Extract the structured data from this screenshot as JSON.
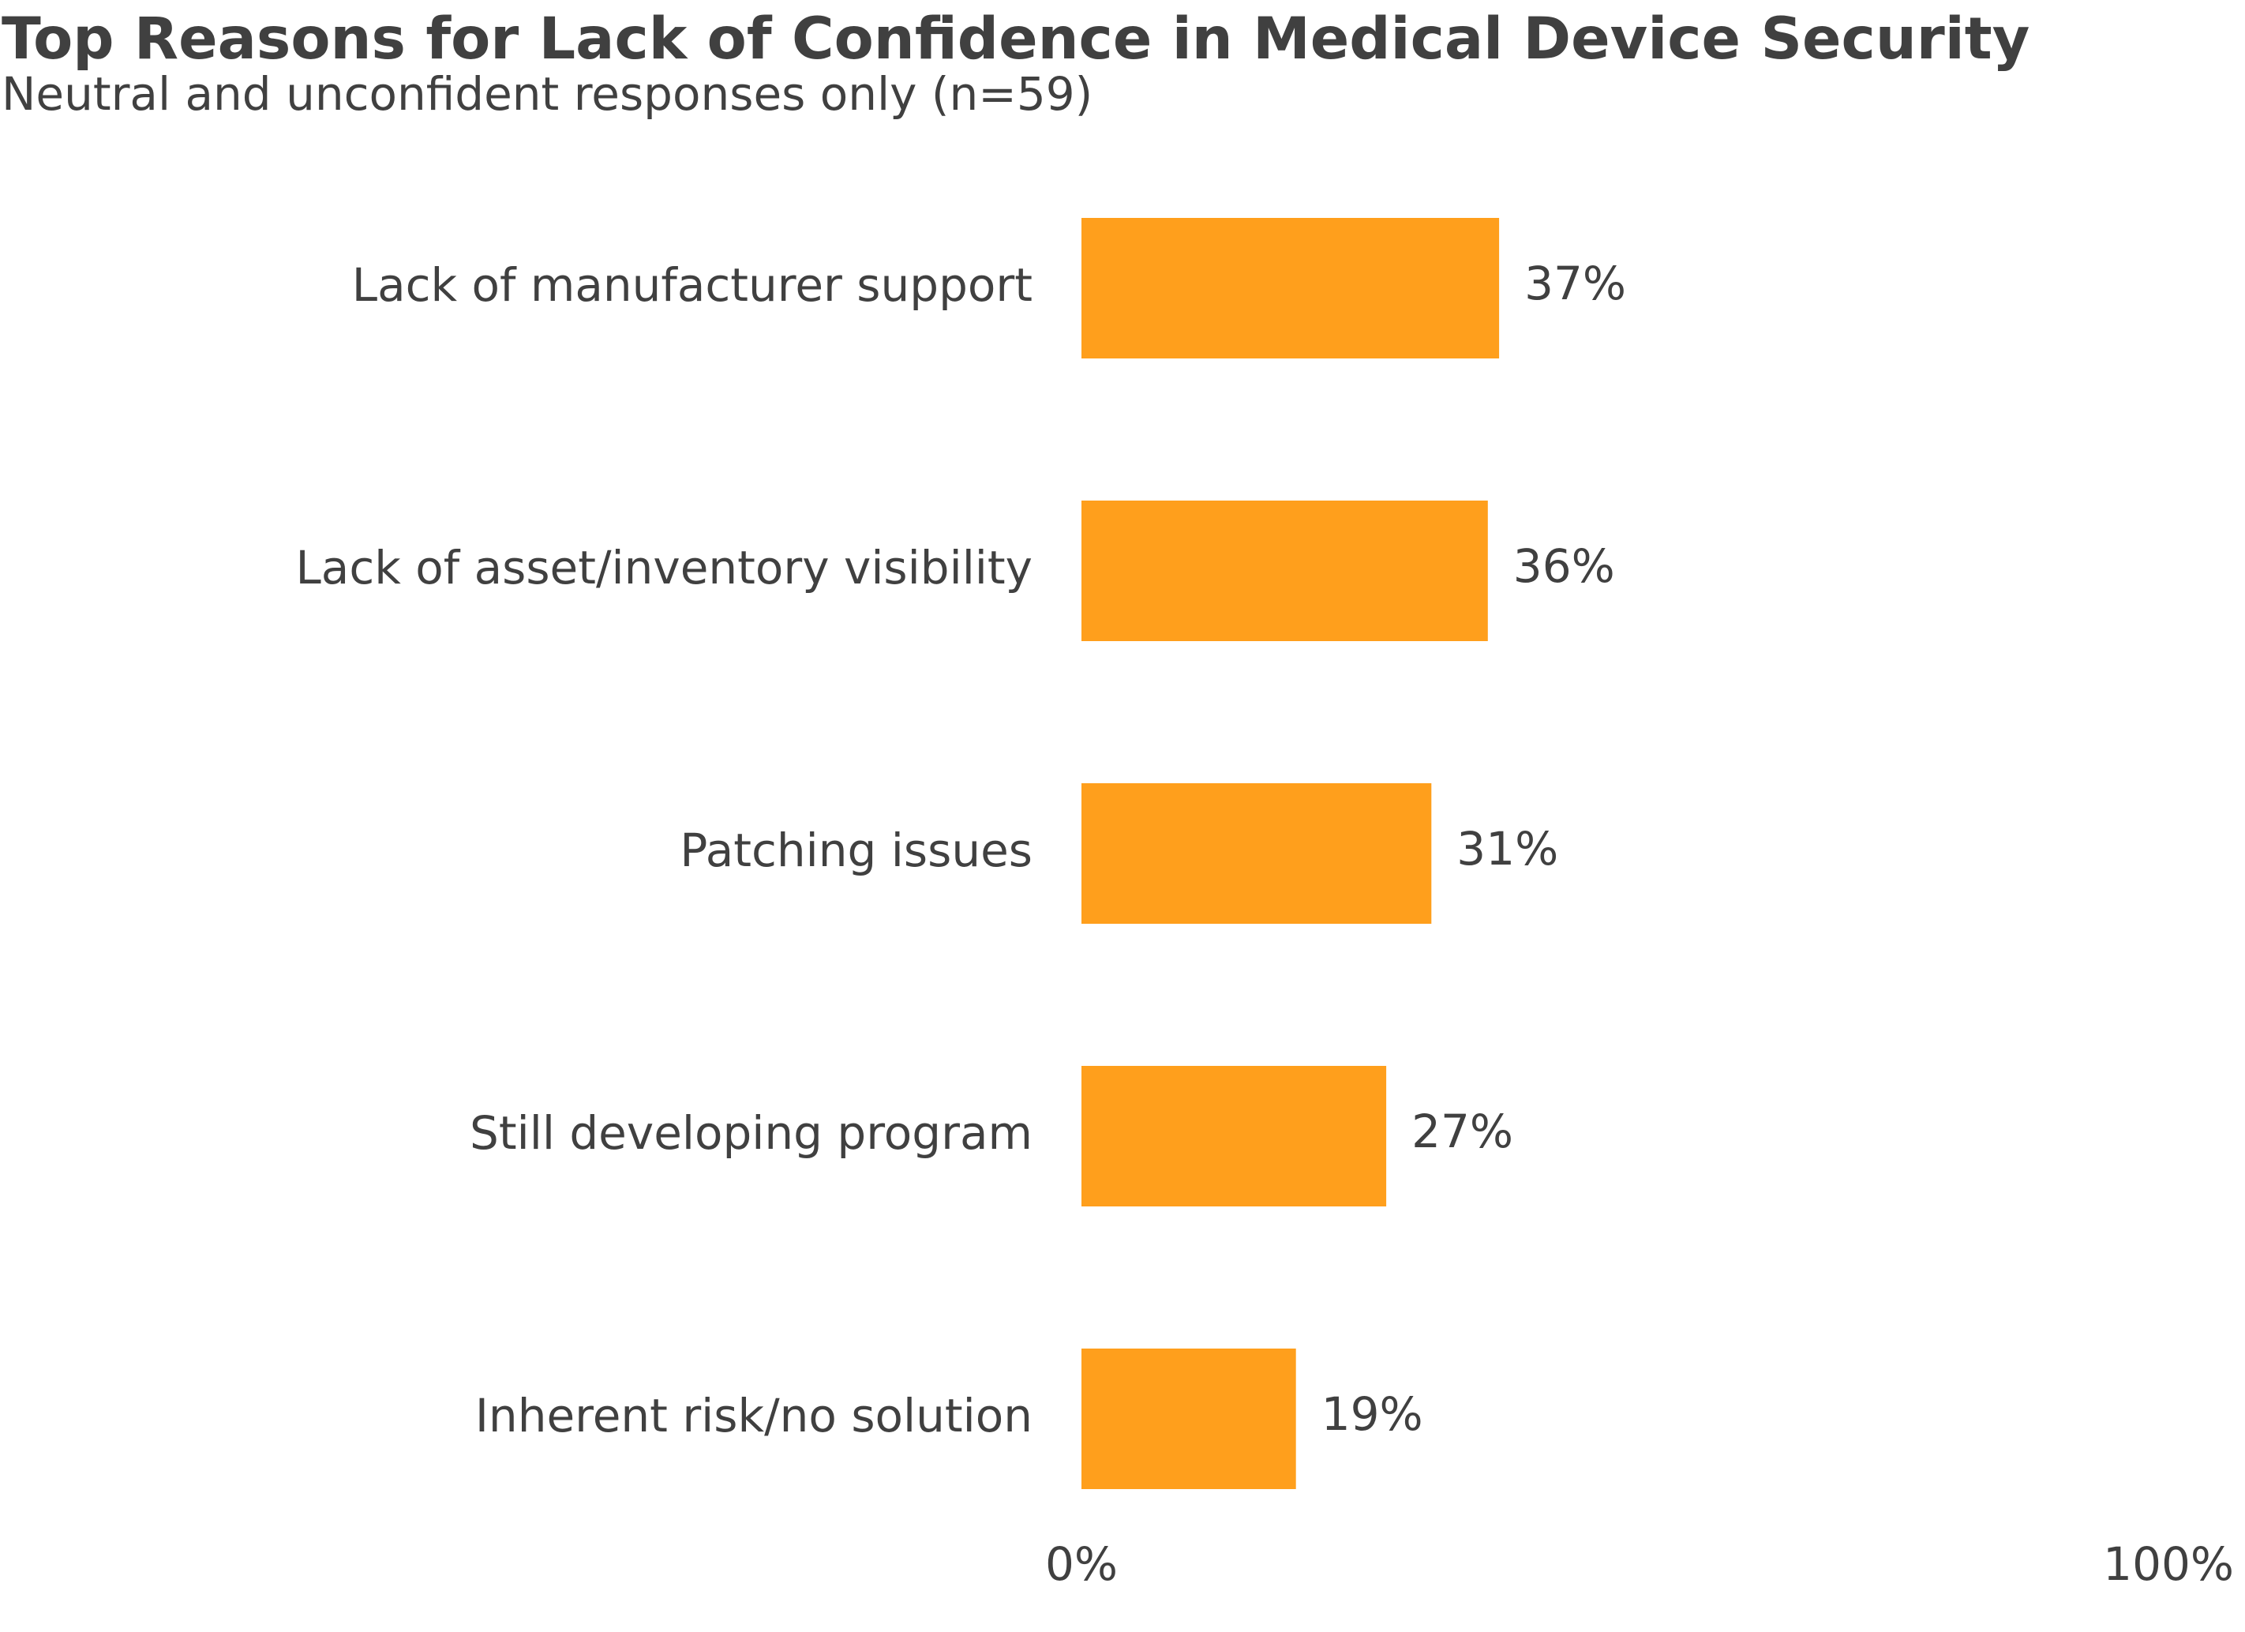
{
  "chart_data": {
    "type": "bar",
    "orientation": "horizontal",
    "title": "Top Reasons for Lack of Confidence in Medical Device Security",
    "subtitle": "Neutral and unconfident responses only (n=59)",
    "categories": [
      "Lack of manufacturer support",
      "Lack of asset/inventory visibility",
      "Patching issues",
      "Still developing program",
      "Inherent risk/no solution"
    ],
    "values": [
      37,
      36,
      31,
      27,
      19
    ],
    "data_labels": [
      "37%",
      "36%",
      "31%",
      "27%",
      "19%"
    ],
    "xlim": [
      0,
      100
    ],
    "x_ticks": [
      0,
      100
    ],
    "x_tick_labels": [
      "0%",
      "100%"
    ],
    "grid": false,
    "legend": "none",
    "bar_color": "#FF9F1C"
  }
}
